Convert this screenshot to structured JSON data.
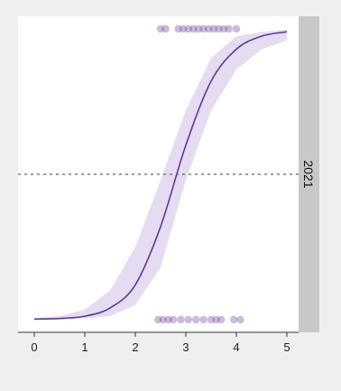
{
  "chart_data": {
    "type": "scatter",
    "facet_label": "2021",
    "xlim": [
      0,
      5
    ],
    "ylim": [
      0,
      1
    ],
    "x_ticks": [
      "0",
      "1",
      "2",
      "3",
      "4",
      "5"
    ],
    "reference_line_y": 0.5,
    "grid": false,
    "colors": {
      "curve": "#5b3a95",
      "ribbon": "#dcd0ee",
      "points": "#6a3d9a",
      "reference_line": "#666666",
      "strip": "#c8c8c8"
    },
    "fit_curve": {
      "x": [
        0.0,
        0.5,
        1.0,
        1.5,
        2.0,
        2.5,
        3.0,
        3.5,
        4.0,
        4.5,
        5.0
      ],
      "y": [
        0.002,
        0.004,
        0.012,
        0.04,
        0.12,
        0.32,
        0.6,
        0.82,
        0.93,
        0.975,
        0.99
      ],
      "lower": [
        0.001,
        0.002,
        0.004,
        0.012,
        0.05,
        0.18,
        0.48,
        0.72,
        0.86,
        0.93,
        0.96
      ],
      "upper": [
        0.005,
        0.012,
        0.035,
        0.1,
        0.25,
        0.48,
        0.72,
        0.9,
        0.975,
        0.99,
        0.997
      ]
    },
    "points": [
      {
        "x": 2.5,
        "y": 1
      },
      {
        "x": 2.6,
        "y": 1
      },
      {
        "x": 2.85,
        "y": 1
      },
      {
        "x": 2.95,
        "y": 1
      },
      {
        "x": 3.05,
        "y": 1
      },
      {
        "x": 3.15,
        "y": 1
      },
      {
        "x": 3.25,
        "y": 1
      },
      {
        "x": 3.35,
        "y": 1
      },
      {
        "x": 3.45,
        "y": 1
      },
      {
        "x": 3.55,
        "y": 1
      },
      {
        "x": 3.65,
        "y": 1
      },
      {
        "x": 3.75,
        "y": 1
      },
      {
        "x": 3.85,
        "y": 1
      },
      {
        "x": 4.0,
        "y": 1
      },
      {
        "x": 2.45,
        "y": 0
      },
      {
        "x": 2.55,
        "y": 0
      },
      {
        "x": 2.65,
        "y": 0
      },
      {
        "x": 2.75,
        "y": 0
      },
      {
        "x": 2.9,
        "y": 0
      },
      {
        "x": 3.05,
        "y": 0
      },
      {
        "x": 3.2,
        "y": 0
      },
      {
        "x": 3.35,
        "y": 0
      },
      {
        "x": 3.5,
        "y": 0
      },
      {
        "x": 3.6,
        "y": 0
      },
      {
        "x": 3.7,
        "y": 0
      },
      {
        "x": 3.95,
        "y": 0
      },
      {
        "x": 4.08,
        "y": 0
      }
    ]
  }
}
